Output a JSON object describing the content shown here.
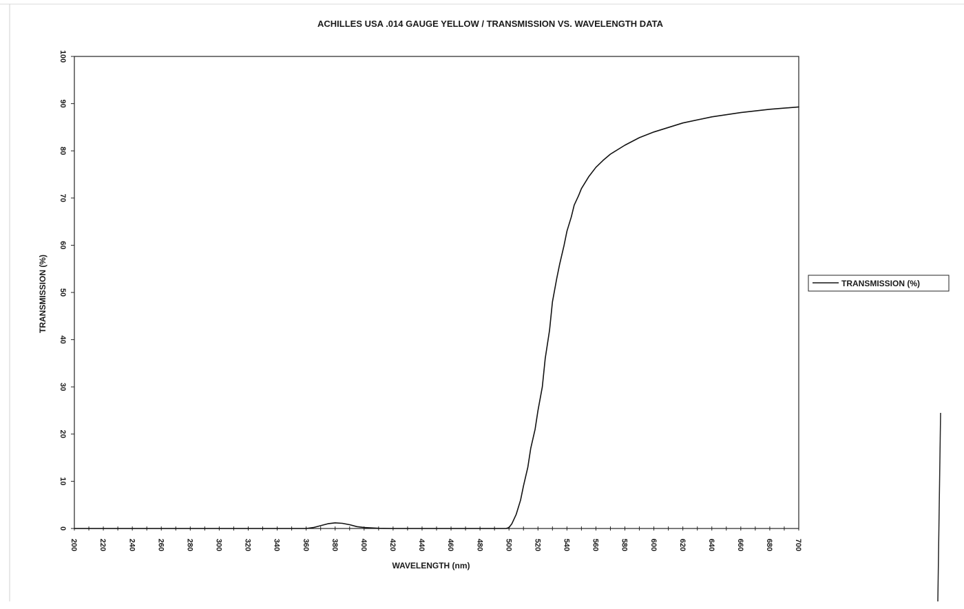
{
  "chart_data": {
    "type": "line",
    "title": "ACHILLES USA .014 GAUGE YELLOW / TRANSMISSION VS. WAVELENGTH DATA",
    "xlabel": "WAVELENGTH (nm)",
    "ylabel": "TRANSMISSION (%)",
    "xlim": [
      200,
      700
    ],
    "ylim": [
      0,
      100
    ],
    "x_ticks": [
      "200",
      "220",
      "240",
      "260",
      "280",
      "300",
      "320",
      "340",
      "360",
      "380",
      "400",
      "420",
      "440",
      "460",
      "480",
      "500",
      "520",
      "540",
      "560",
      "580",
      "600",
      "620",
      "640",
      "660",
      "680",
      "700"
    ],
    "y_ticks": [
      "0",
      "10",
      "20",
      "30",
      "40",
      "50",
      "60",
      "70",
      "80",
      "90",
      "100"
    ],
    "grid": false,
    "legend_position": "right",
    "series": [
      {
        "name": "TRANSMISSION (%)",
        "color": "#111111",
        "x": [
          200,
          300,
          360,
          365,
          370,
          375,
          380,
          385,
          390,
          395,
          400,
          410,
          420,
          440,
          480,
          495,
          498,
          500,
          502,
          505,
          508,
          510,
          513,
          515,
          518,
          520,
          523,
          525,
          528,
          530,
          533,
          535,
          538,
          540,
          543,
          545,
          548,
          550,
          553,
          555,
          560,
          565,
          570,
          580,
          590,
          600,
          620,
          640,
          660,
          680,
          700
        ],
        "y": [
          0,
          0,
          0,
          0.2,
          0.6,
          1.0,
          1.2,
          1.1,
          0.8,
          0.4,
          0.2,
          0.05,
          0,
          0,
          0,
          0,
          0,
          0.2,
          1.0,
          3.0,
          6.0,
          9.0,
          13.0,
          17.0,
          21.0,
          25.0,
          30.0,
          36.0,
          42.0,
          48.0,
          53.0,
          56.0,
          60.0,
          63.0,
          66.0,
          68.5,
          70.5,
          72.0,
          73.5,
          74.5,
          76.5,
          78.0,
          79.3,
          81.2,
          82.8,
          84.0,
          85.9,
          87.2,
          88.1,
          88.8,
          89.3
        ]
      }
    ]
  }
}
